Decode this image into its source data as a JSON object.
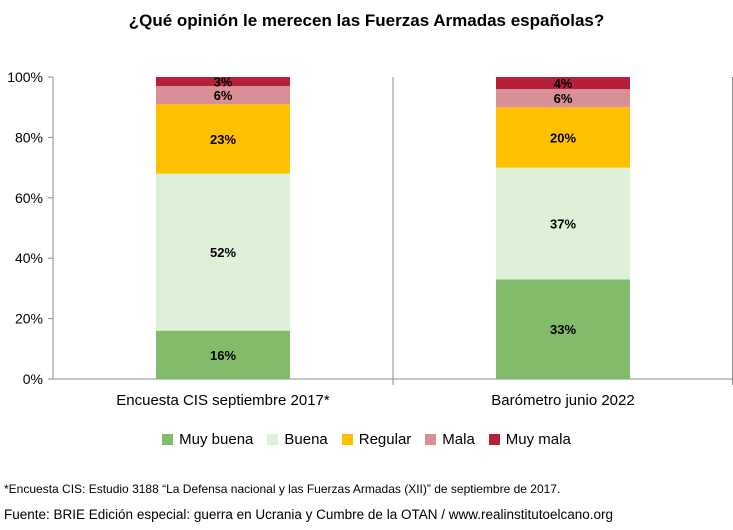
{
  "chart_data": {
    "type": "bar",
    "stacked": true,
    "percent": true,
    "title": "¿Qué opinión le merecen las Fuerzas Armadas españolas?",
    "categories": [
      "Encuesta CIS septiembre 2017*",
      "Barómetro junio 2022"
    ],
    "series": [
      {
        "name": "Muy buena",
        "color": "#82bc6a",
        "values": [
          16,
          33
        ]
      },
      {
        "name": "Buena",
        "color": "#dff0d8",
        "values": [
          52,
          37
        ]
      },
      {
        "name": "Regular",
        "color": "#ffc000",
        "values": [
          23,
          20
        ]
      },
      {
        "name": "Mala",
        "color": "#d98f96",
        "values": [
          6,
          6
        ]
      },
      {
        "name": "Muy mala",
        "color": "#b5203a",
        "values": [
          3,
          4
        ]
      }
    ],
    "ylim": [
      0,
      100
    ],
    "yticks": [
      "0%",
      "20%",
      "40%",
      "60%",
      "80%",
      "100%"
    ],
    "grid": false,
    "legend_position": "bottom"
  },
  "footnote": "*Encuesta CIS: Estudio 3188 “La Defensa nacional y las Fuerzas Armadas (XII)” de septiembre de 2017.",
  "source": "Fuente: BRIE Edición especial: guerra en Ucrania y Cumbre de la OTAN / www.realinstitutoelcano.org"
}
